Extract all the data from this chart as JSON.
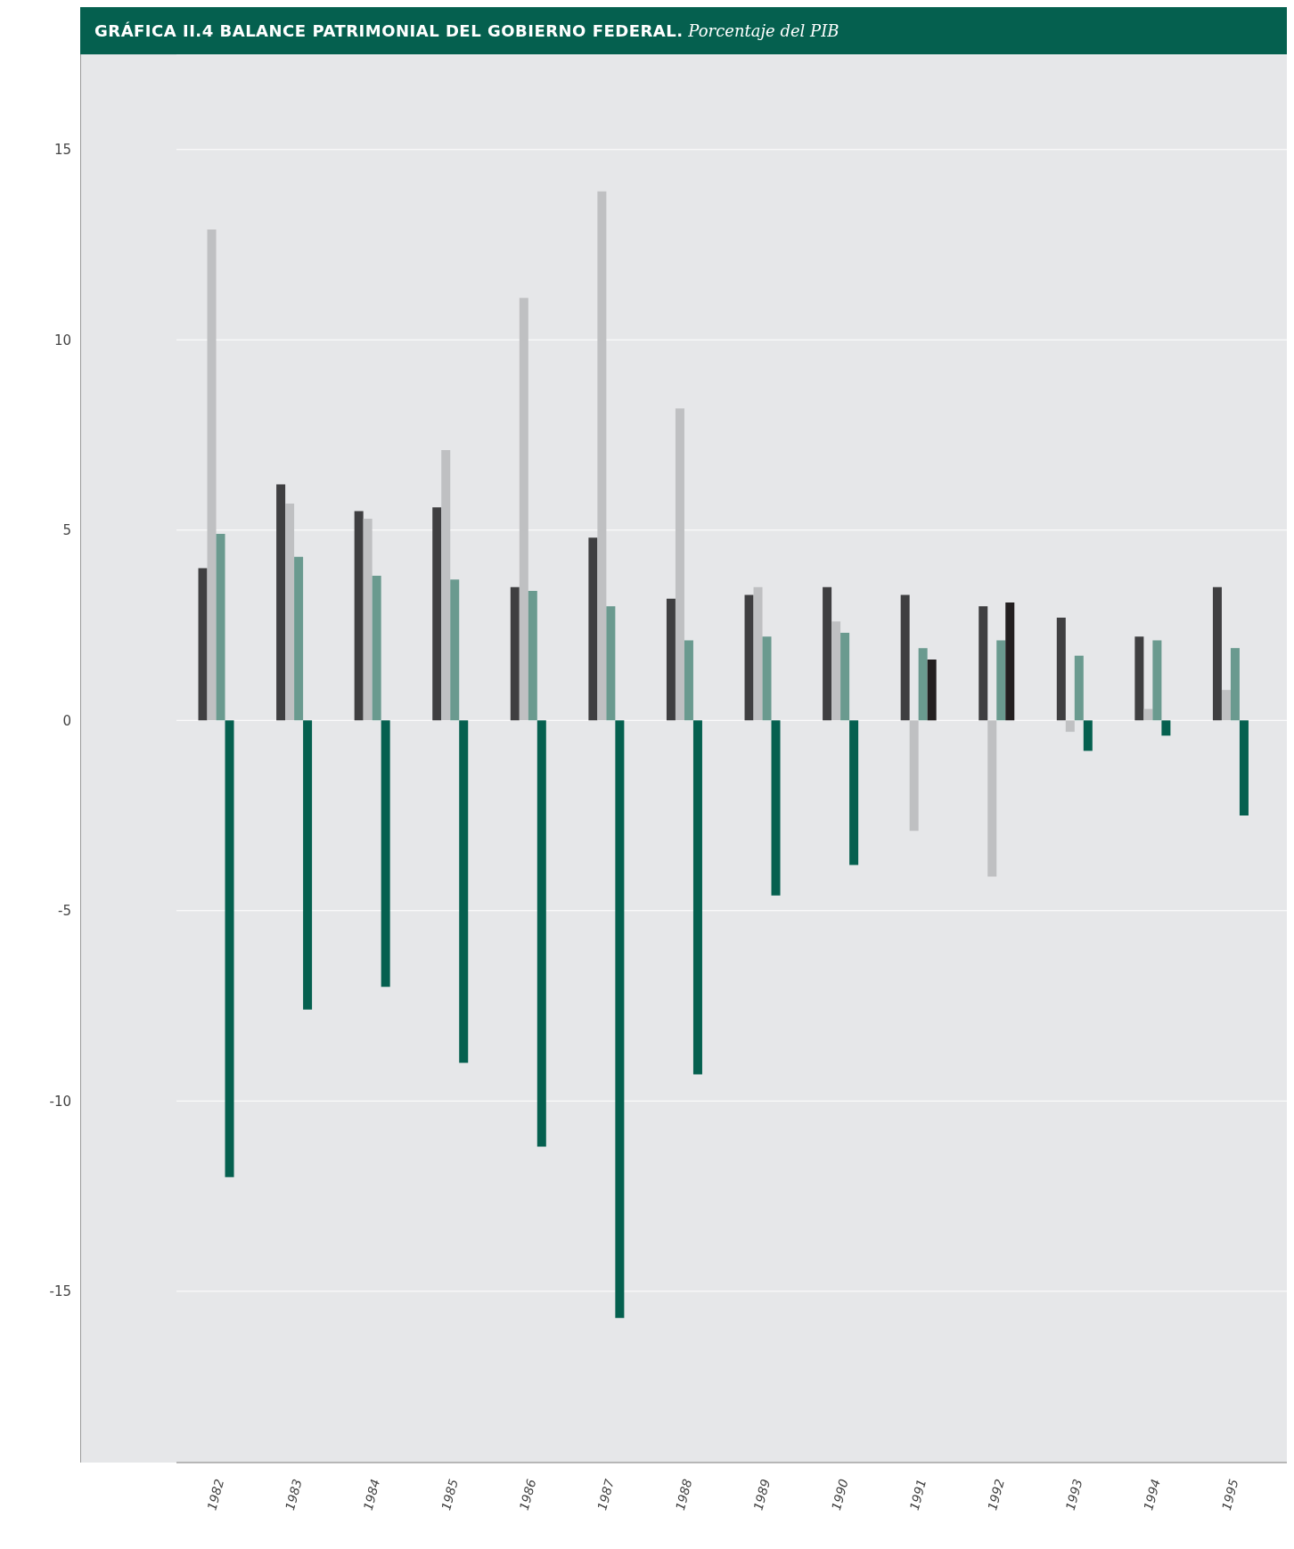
{
  "chart_data": {
    "type": "bar",
    "title": "GRÁFICA II.4 BALANCE PATRIMONIAL DEL GOBIERNO FEDERAL.",
    "subtitle": "Porcentaje del PIB",
    "categories": [
      "1982",
      "1983",
      "1984",
      "1985",
      "1986",
      "1987",
      "1988",
      "1989",
      "1990",
      "1991",
      "1992",
      "1993",
      "1994",
      "1995"
    ],
    "series": [
      {
        "color": "#3f3f41",
        "values": [
          4.0,
          6.2,
          5.5,
          5.6,
          3.5,
          4.8,
          3.2,
          3.3,
          3.5,
          3.3,
          3.0,
          2.7,
          2.2,
          3.5
        ]
      },
      {
        "color": "#bfc0c2",
        "values": [
          12.9,
          5.7,
          5.3,
          7.1,
          11.1,
          13.9,
          8.2,
          3.5,
          2.6,
          -2.9,
          -4.1,
          -0.3,
          0.3,
          0.8
        ]
      },
      {
        "color": "#6a9a8f",
        "values": [
          4.9,
          4.3,
          3.8,
          3.7,
          3.4,
          3.0,
          2.1,
          2.2,
          2.3,
          1.9,
          2.1,
          1.7,
          2.1,
          1.9
        ]
      },
      {
        "color": "#05604f",
        "colors": [
          "#05604f",
          "#05604f",
          "#05604f",
          "#05604f",
          "#05604f",
          "#05604f",
          "#05604f",
          "#05604f",
          "#05604f",
          "#231f20",
          "#231f20",
          "#05604f",
          "#05604f",
          "#05604f"
        ],
        "values": [
          -12.0,
          -7.6,
          -7.0,
          -9.0,
          -11.2,
          -15.7,
          -9.3,
          -4.6,
          -3.8,
          1.6,
          3.1,
          -0.8,
          -0.4,
          -2.5
        ]
      }
    ],
    "ylim": [
      -19.5,
      17.5
    ],
    "yticks": [
      -15,
      -10,
      -5,
      0,
      5,
      10,
      15
    ],
    "grid": "y",
    "legend": false
  }
}
